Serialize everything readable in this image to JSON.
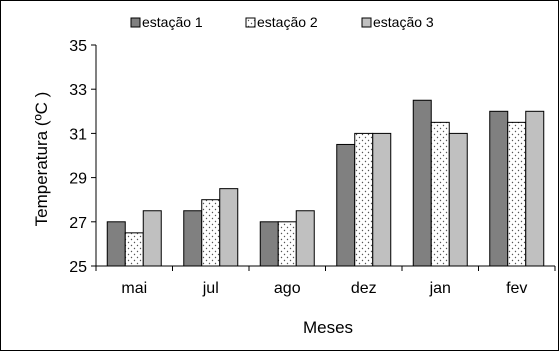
{
  "chart_data": {
    "type": "bar",
    "categories": [
      "mai",
      "jul",
      "ago",
      "dez",
      "jan",
      "fev"
    ],
    "series": [
      {
        "name": "estação 1",
        "values": [
          27.0,
          27.5,
          27.0,
          30.5,
          32.5,
          32.0
        ],
        "color": "#808080",
        "pattern": "solid"
      },
      {
        "name": "estação 2",
        "values": [
          26.5,
          28.0,
          27.0,
          31.0,
          31.5,
          31.5
        ],
        "color": "#ffffff",
        "pattern": "dotted"
      },
      {
        "name": "estação 3",
        "values": [
          27.5,
          28.5,
          27.5,
          31.0,
          31.0,
          32.0
        ],
        "color": "#c0c0c0",
        "pattern": "solid"
      }
    ],
    "xlabel": "Meses",
    "ylabel": "Temperatura (ºC )",
    "ylim": [
      25,
      35
    ],
    "yticks": [
      25,
      27,
      29,
      31,
      33,
      35
    ],
    "grid": false,
    "legend": "top"
  }
}
